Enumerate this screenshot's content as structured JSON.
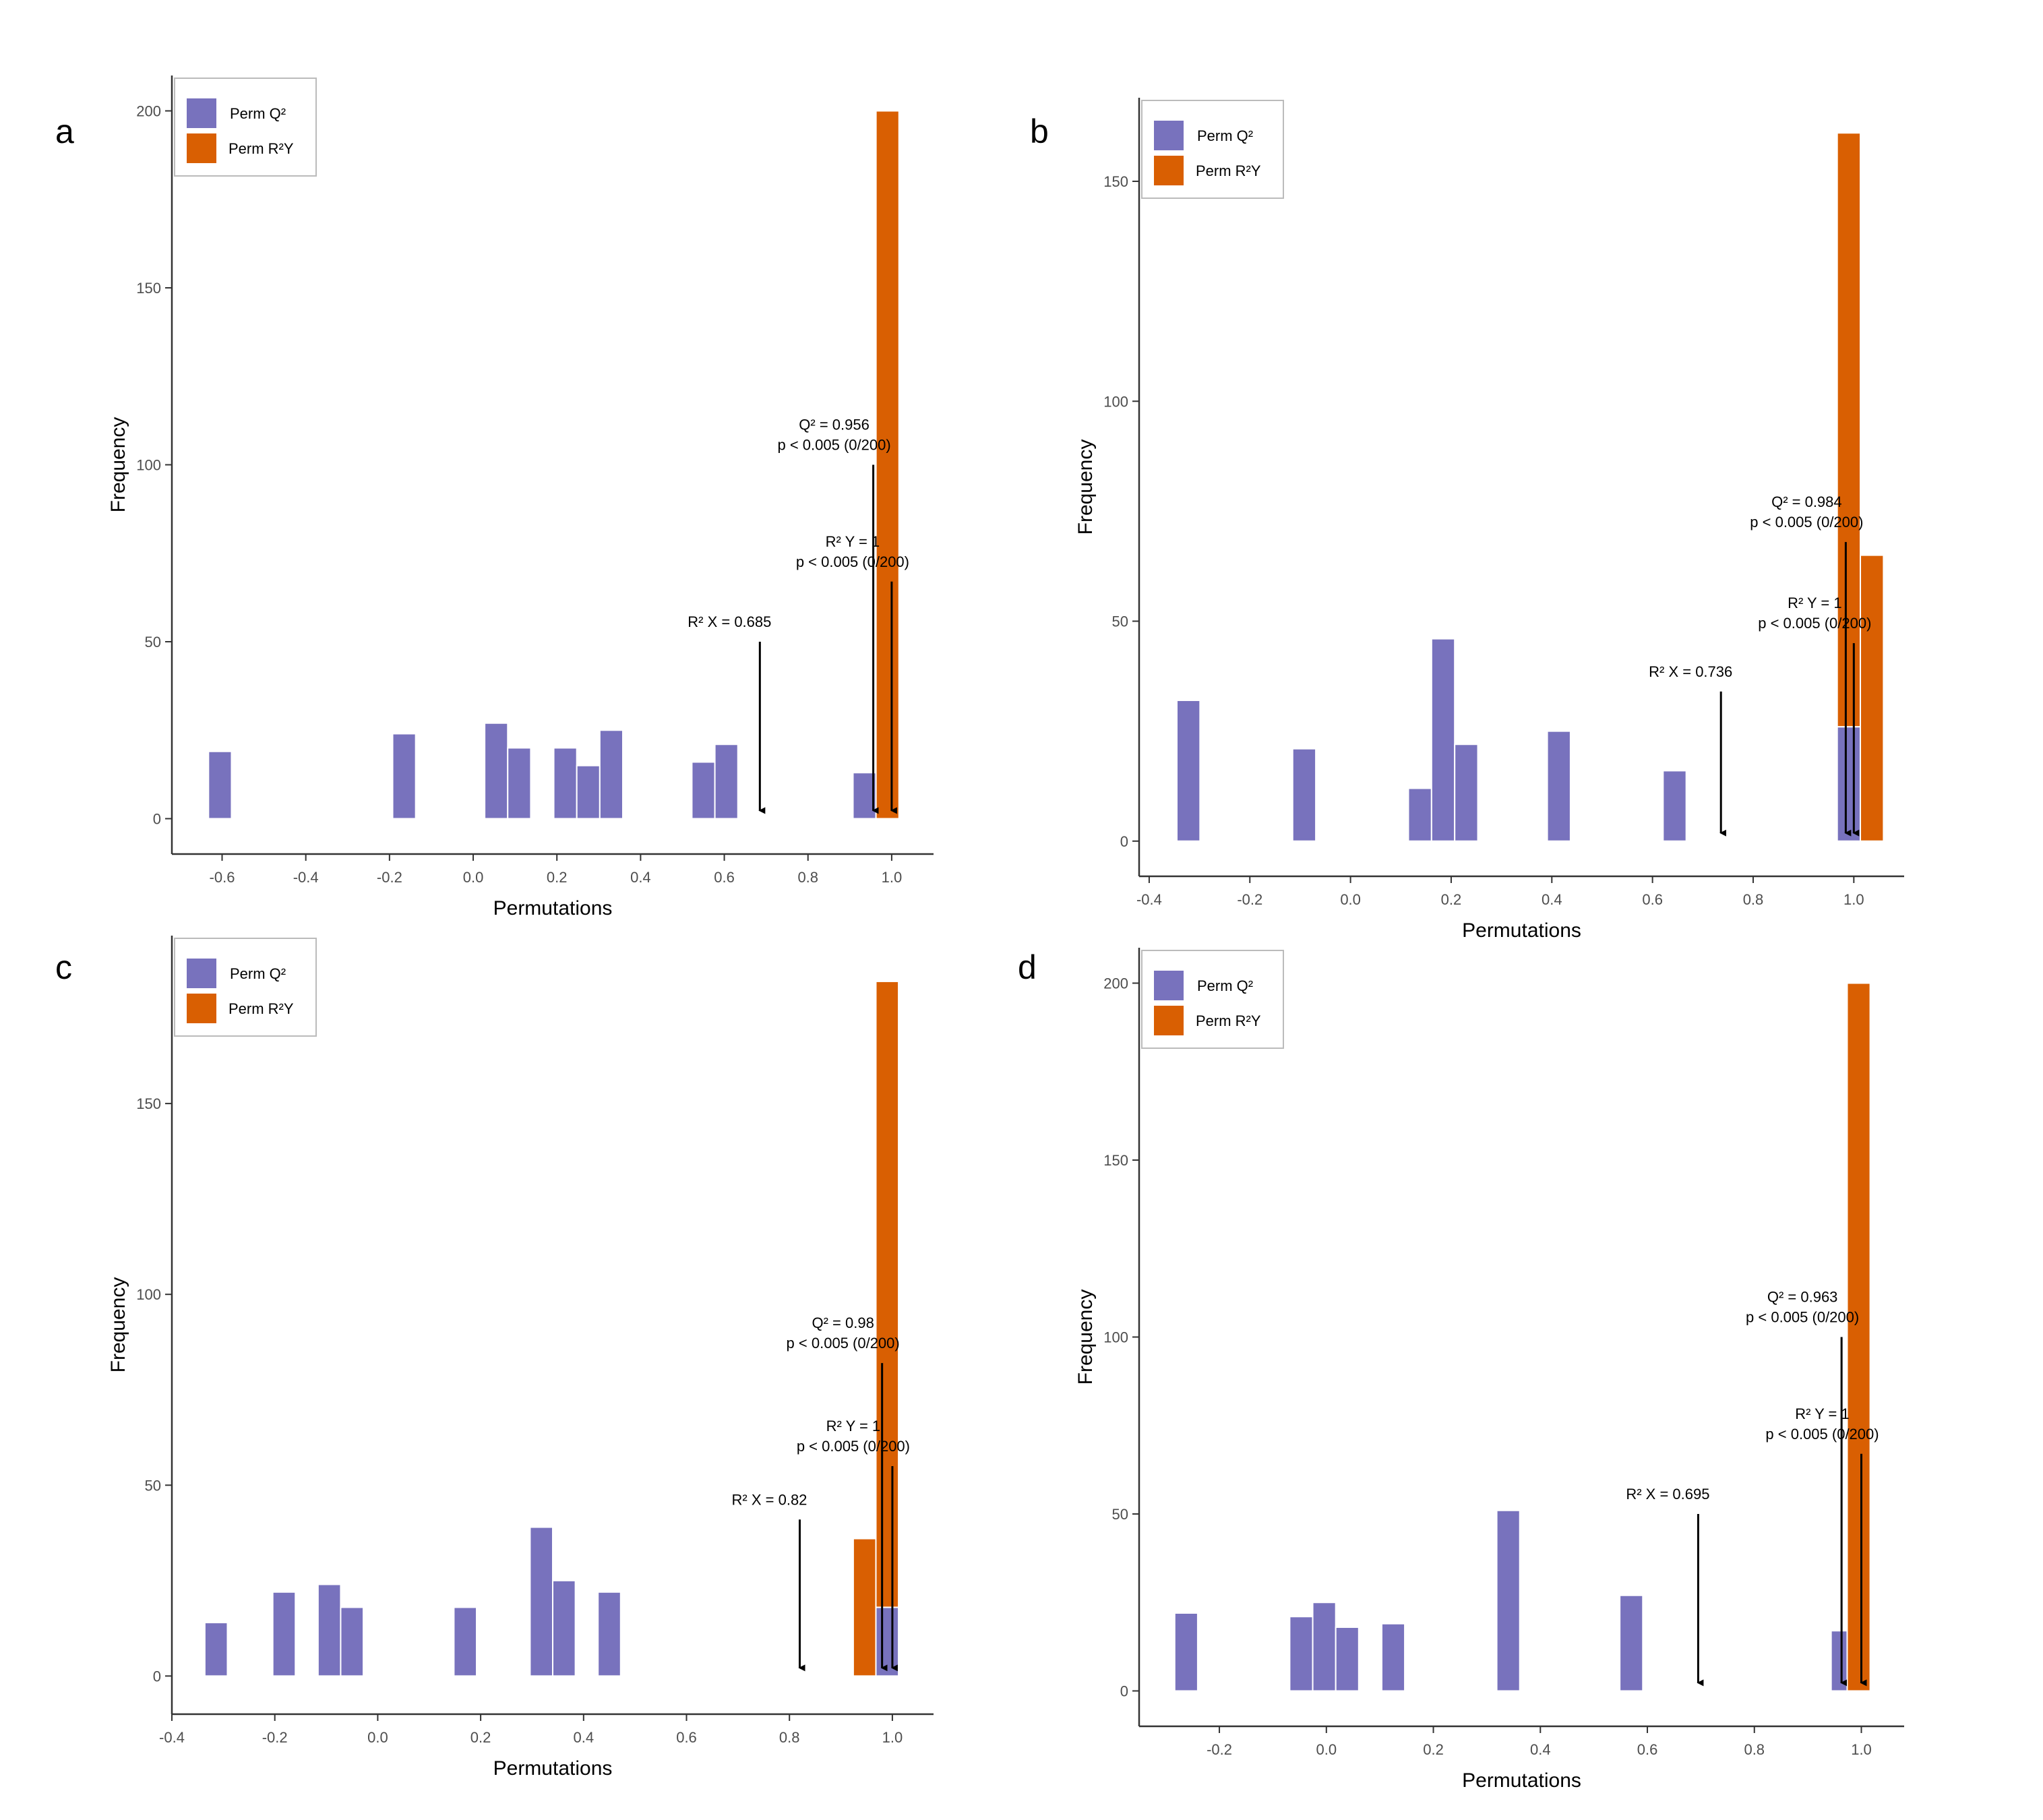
{
  "colors": {
    "q2": "#7872bd",
    "r2y": "#d95f02",
    "axis": "#333333",
    "tick_text": "#4d4d4d",
    "bar_edge": "#ffffff"
  },
  "legend": {
    "q2_label": "Perm Q²",
    "r2y_label": "Perm R²Y"
  },
  "chart_data": [
    {
      "panel": "a",
      "type": "bar",
      "stacked": true,
      "xlabel": "Permutations",
      "ylabel": "Frequency",
      "xlim": [
        -0.72,
        1.1
      ],
      "ylim": [
        -10,
        210
      ],
      "xticks": [
        -0.6,
        -0.4,
        -0.2,
        0.0,
        0.2,
        0.4,
        0.6,
        0.8,
        1.0
      ],
      "xtick_labels": [
        "-0.6",
        "-0.4",
        "-0.2",
        "0.0",
        "0.2",
        "0.4",
        "0.6",
        "0.8",
        "1.0"
      ],
      "yticks": [
        0,
        50,
        100,
        150,
        200
      ],
      "bin_width": 0.055,
      "series": [
        {
          "name": "Perm Q²",
          "x": [
            -0.605,
            -0.165,
            0.055,
            0.11,
            0.22,
            0.275,
            0.33,
            0.55,
            0.605,
            0.935,
            0.99
          ],
          "values": [
            19,
            24,
            27,
            20,
            20,
            15,
            25,
            16,
            21,
            13,
            0
          ]
        },
        {
          "name": "Perm R²Y",
          "x": [
            0.99
          ],
          "values": [
            200
          ]
        }
      ],
      "annotations": [
        {
          "line1": "Q² = 0.956",
          "line2": "p < 0.005 (0/200)",
          "x": 0.956,
          "top": 100
        },
        {
          "line1": "R² Y = 1",
          "line2": "p < 0.005 (0/200)",
          "x": 1.0,
          "top": 67
        },
        {
          "line1": "R² X = 0.685",
          "line2": "",
          "x": 0.685,
          "top": 50
        }
      ]
    },
    {
      "panel": "b",
      "type": "bar",
      "stacked": true,
      "xlabel": "Permutations",
      "ylabel": "Frequency",
      "xlim": [
        -0.42,
        1.1
      ],
      "ylim": [
        -8,
        169
      ],
      "xticks": [
        -0.4,
        -0.2,
        0.0,
        0.2,
        0.4,
        0.6,
        0.8,
        1.0
      ],
      "xtick_labels": [
        "-0.4",
        "-0.2",
        "0.0",
        "0.2",
        "0.4",
        "0.6",
        "0.8",
        "1.0"
      ],
      "yticks": [
        0,
        50,
        100,
        150
      ],
      "bin_width": 0.046,
      "series": [
        {
          "name": "Perm Q²",
          "x": [
            -0.322,
            -0.092,
            0.138,
            0.184,
            0.23,
            0.414,
            0.644,
            0.99
          ],
          "values": [
            32,
            21,
            12,
            46,
            22,
            25,
            16,
            26
          ]
        },
        {
          "name": "Perm R²Y",
          "x": [
            0.99,
            1.036
          ],
          "values": [
            135,
            65
          ]
        }
      ],
      "annotations": [
        {
          "line1": "Q² = 0.984",
          "line2": "p < 0.005 (0/200)",
          "x": 0.984,
          "top": 68
        },
        {
          "line1": "R² Y = 1",
          "line2": "p < 0.005 (0/200)",
          "x": 1.0,
          "top": 45
        },
        {
          "line1": "R² X = 0.736",
          "line2": "",
          "x": 0.736,
          "top": 34
        }
      ]
    },
    {
      "panel": "c",
      "type": "bar",
      "stacked": true,
      "xlabel": "Permutations",
      "ylabel": "Frequency",
      "xlim": [
        -0.4,
        1.08
      ],
      "ylim": [
        -10,
        194
      ],
      "xticks": [
        -0.4,
        -0.2,
        0.0,
        0.2,
        0.4,
        0.6,
        0.8,
        1.0
      ],
      "xtick_labels": [
        "-0.4",
        "-0.2",
        "0.0",
        "0.2",
        "0.4",
        "0.6",
        "0.8",
        "1.0"
      ],
      "yticks": [
        0,
        50,
        100,
        150
      ],
      "bin_width": 0.044,
      "series": [
        {
          "name": "Perm Q²",
          "x": [
            -0.314,
            -0.182,
            -0.094,
            -0.05,
            0.17,
            0.318,
            0.362,
            0.45,
            0.99
          ],
          "values": [
            14,
            22,
            24,
            18,
            18,
            39,
            25,
            22,
            18
          ]
        },
        {
          "name": "Perm R²Y",
          "x": [
            0.946,
            0.99
          ],
          "values": [
            36,
            164
          ]
        }
      ],
      "annotations": [
        {
          "line1": "Q² = 0.98",
          "line2": "p < 0.005 (0/200)",
          "x": 0.98,
          "top": 82
        },
        {
          "line1": "R² Y = 1",
          "line2": "p < 0.005 (0/200)",
          "x": 1.0,
          "top": 55
        },
        {
          "line1": "R² X = 0.82",
          "line2": "",
          "x": 0.82,
          "top": 41
        }
      ]
    },
    {
      "panel": "d",
      "type": "bar",
      "stacked": true,
      "xlabel": "Permutations",
      "ylabel": "Frequency",
      "xlim": [
        -0.35,
        1.08
      ],
      "ylim": [
        -10,
        210
      ],
      "xticks": [
        -0.2,
        0.0,
        0.2,
        0.4,
        0.6,
        0.8,
        1.0
      ],
      "xtick_labels": [
        "-0.2",
        "0.0",
        "0.2",
        "0.4",
        "0.6",
        "0.8",
        "1.0"
      ],
      "yticks": [
        0,
        50,
        100,
        150,
        200
      ],
      "bin_width": 0.043,
      "series": [
        {
          "name": "Perm Q²",
          "x": [
            -0.262,
            -0.047,
            -0.004,
            0.039,
            0.125,
            0.34,
            0.57,
            0.965
          ],
          "values": [
            22,
            21,
            25,
            18,
            19,
            51,
            27,
            17
          ]
        },
        {
          "name": "Perm R²Y",
          "x": [
            0.995
          ],
          "values": [
            200
          ]
        }
      ],
      "annotations": [
        {
          "line1": "Q² = 0.963",
          "line2": "p < 0.005 (0/200)",
          "x": 0.963,
          "top": 100
        },
        {
          "line1": "R² Y = 1",
          "line2": "p < 0.005 (0/200)",
          "x": 1.0,
          "top": 67
        },
        {
          "line1": "R² X = 0.695",
          "line2": "",
          "x": 0.695,
          "top": 50
        }
      ]
    }
  ]
}
